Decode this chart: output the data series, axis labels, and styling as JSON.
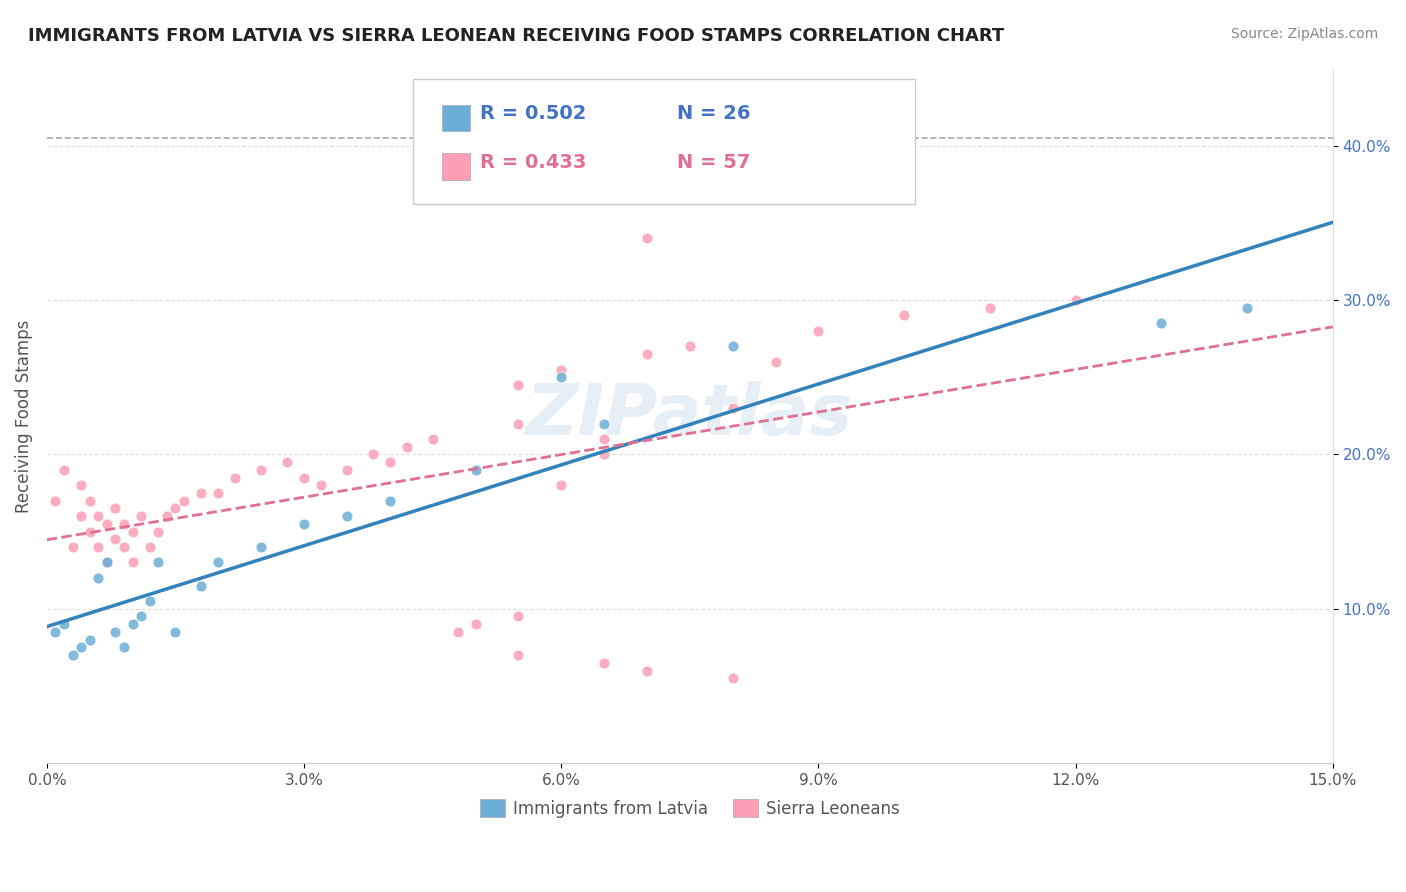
{
  "title": "IMMIGRANTS FROM LATVIA VS SIERRA LEONEAN RECEIVING FOOD STAMPS CORRELATION CHART",
  "source_text": "Source: ZipAtlas.com",
  "ylabel": "Receiving Food Stamps",
  "xlim": [
    0.0,
    0.15
  ],
  "ylim": [
    0.0,
    0.45
  ],
  "xticks": [
    0.0,
    0.03,
    0.06,
    0.09,
    0.12,
    0.15
  ],
  "xtick_labels": [
    "0.0%",
    "3.0%",
    "6.0%",
    "9.0%",
    "12.0%",
    "15.0%"
  ],
  "ytick_positions": [
    0.1,
    0.2,
    0.3,
    0.4
  ],
  "ytick_labels": [
    "10.0%",
    "20.0%",
    "30.0%",
    "40.0%"
  ],
  "watermark": "ZIPatlas",
  "legend_r_latvia": "R = 0.502",
  "legend_n_latvia": "N = 26",
  "legend_r_sierra": "R = 0.433",
  "legend_n_sierra": "N = 57",
  "legend_label_latvia": "Immigrants from Latvia",
  "legend_label_sierra": "Sierra Leoneans",
  "color_latvia": "#6baed6",
  "color_sierra": "#fa9fb5",
  "color_trend_latvia": "#3182bd",
  "color_trend_sierra": "#e07090",
  "color_dashed_line": "#aaaaaa",
  "scatter_alpha": 0.85,
  "scatter_size": 60,
  "latvia_x": [
    0.001,
    0.002,
    0.003,
    0.004,
    0.005,
    0.006,
    0.007,
    0.008,
    0.009,
    0.01,
    0.011,
    0.012,
    0.013,
    0.015,
    0.018,
    0.02,
    0.025,
    0.03,
    0.035,
    0.04,
    0.05,
    0.06,
    0.065,
    0.08,
    0.13,
    0.14
  ],
  "latvia_y": [
    0.085,
    0.09,
    0.07,
    0.075,
    0.08,
    0.12,
    0.13,
    0.085,
    0.075,
    0.09,
    0.095,
    0.105,
    0.13,
    0.085,
    0.115,
    0.13,
    0.14,
    0.155,
    0.16,
    0.17,
    0.19,
    0.25,
    0.22,
    0.27,
    0.285,
    0.295
  ],
  "sierra_x": [
    0.001,
    0.002,
    0.003,
    0.004,
    0.004,
    0.005,
    0.005,
    0.006,
    0.006,
    0.007,
    0.007,
    0.008,
    0.008,
    0.009,
    0.009,
    0.01,
    0.01,
    0.011,
    0.012,
    0.013,
    0.014,
    0.015,
    0.016,
    0.018,
    0.02,
    0.022,
    0.025,
    0.028,
    0.03,
    0.032,
    0.035,
    0.038,
    0.04,
    0.042,
    0.045,
    0.048,
    0.05,
    0.055,
    0.06,
    0.065,
    0.055,
    0.065,
    0.07,
    0.075,
    0.08,
    0.085,
    0.09,
    0.1,
    0.11,
    0.12,
    0.055,
    0.06,
    0.07,
    0.055,
    0.065,
    0.07,
    0.08
  ],
  "sierra_y": [
    0.17,
    0.19,
    0.14,
    0.16,
    0.18,
    0.15,
    0.17,
    0.14,
    0.16,
    0.13,
    0.155,
    0.145,
    0.165,
    0.14,
    0.155,
    0.13,
    0.15,
    0.16,
    0.14,
    0.15,
    0.16,
    0.165,
    0.17,
    0.175,
    0.175,
    0.185,
    0.19,
    0.195,
    0.185,
    0.18,
    0.19,
    0.2,
    0.195,
    0.205,
    0.21,
    0.085,
    0.09,
    0.095,
    0.18,
    0.2,
    0.22,
    0.21,
    0.34,
    0.27,
    0.23,
    0.26,
    0.28,
    0.29,
    0.295,
    0.3,
    0.245,
    0.255,
    0.265,
    0.07,
    0.065,
    0.06,
    0.055
  ]
}
